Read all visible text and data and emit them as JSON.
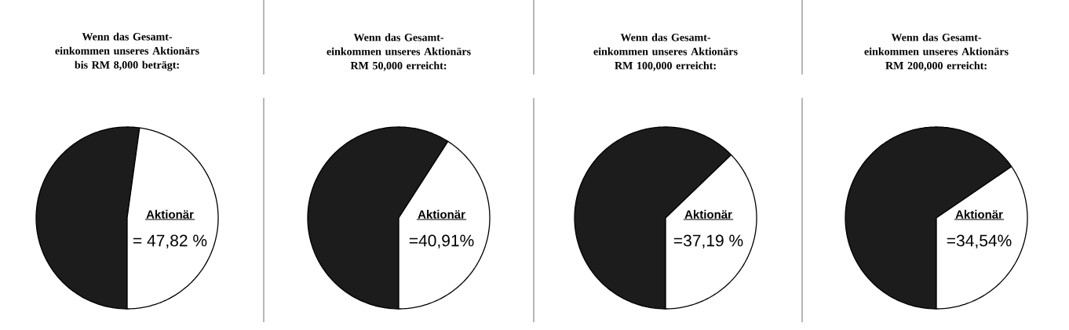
{
  "chart_data": [
    {
      "type": "pie",
      "title": "Wenn das Gesamt-einkommen unseres Aktionärs bis RM 8,000 beträgt:",
      "categories": [
        null,
        "Aktionär"
      ],
      "values": [
        52.18,
        47.82
      ],
      "colors": [
        "#1c1c1c",
        "#ffffff"
      ],
      "value_labels": [
        null,
        "= 47,82 %"
      ]
    },
    {
      "type": "pie",
      "title": "Wenn das Gesamt-einkommen unseres Aktionärs RM 50,000 erreicht:",
      "categories": [
        null,
        "Aktionär"
      ],
      "values": [
        59.09,
        40.91
      ],
      "colors": [
        "#1c1c1c",
        "#ffffff"
      ],
      "value_labels": [
        null,
        "=40,91%"
      ]
    },
    {
      "type": "pie",
      "title": "Wenn das Gesamt-einkommen unseres Aktionärs RM 100,000 erreicht:",
      "categories": [
        null,
        "Aktionär"
      ],
      "values": [
        62.81,
        37.19
      ],
      "colors": [
        "#1c1c1c",
        "#ffffff"
      ],
      "value_labels": [
        null,
        "=37,19 %"
      ]
    },
    {
      "type": "pie",
      "title": "Wenn das Gesamt-einkommen unseres Aktionärs RM 200,000 erreicht:",
      "categories": [
        null,
        "Aktionär"
      ],
      "values": [
        65.46,
        34.54
      ],
      "colors": [
        "#1c1c1c",
        "#ffffff"
      ],
      "value_labels": [
        null,
        "=34,54%"
      ]
    }
  ]
}
